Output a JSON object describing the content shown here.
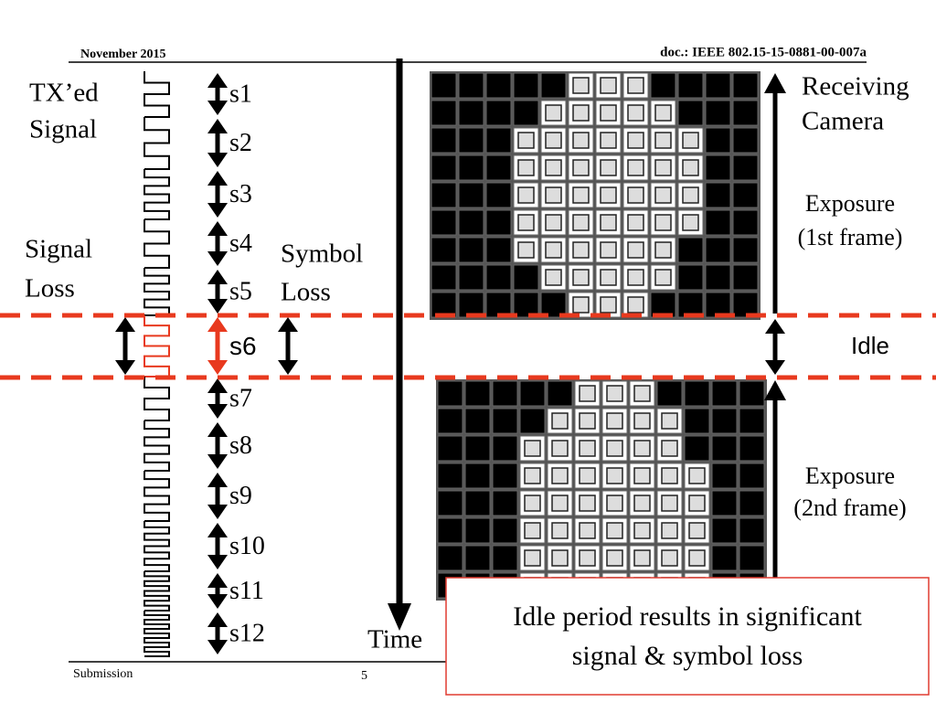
{
  "header": {
    "date": "November 2015",
    "doc": "doc.: IEEE 802.15-15-0881-00-007a"
  },
  "labels": {
    "tx_signal": [
      "TX’ed",
      "Signal"
    ],
    "signal_loss": [
      "Signal",
      "Loss"
    ],
    "symbol_loss": [
      "Symbol",
      "Loss"
    ],
    "time": "Time",
    "receiving_camera": [
      "Receiving",
      "Camera"
    ],
    "exposure_1": [
      "Exposure",
      "(1st frame)"
    ],
    "idle": "Idle",
    "exposure_2": [
      "Exposure",
      "(2nd frame)"
    ]
  },
  "symbols": [
    "s1",
    "s2",
    "s3",
    "s4",
    "s5",
    "s6",
    "s7",
    "s8",
    "s9",
    "s10",
    "s11",
    "s12"
  ],
  "callout": [
    "Idle period results in significant",
    "signal & symbol loss"
  ],
  "footer": {
    "left": "Submission",
    "page": "5"
  }
}
